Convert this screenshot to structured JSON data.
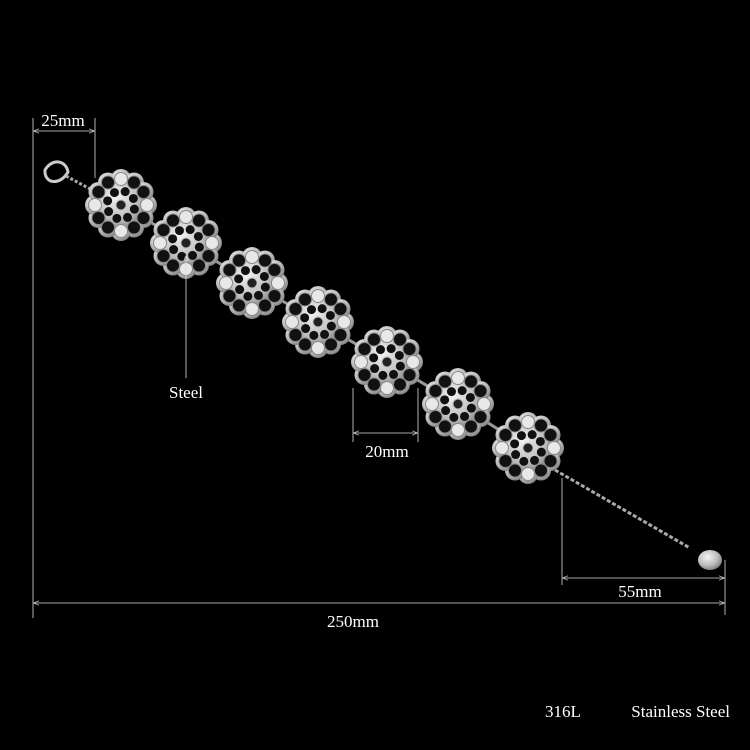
{
  "annotations": {
    "clasp_width": "25mm",
    "material_pointer": "Steel",
    "flower_width": "20mm",
    "extension_chain": "55mm",
    "total_length": "250mm"
  },
  "footer": {
    "grade": "316L",
    "material": "Stainless Steel"
  }
}
